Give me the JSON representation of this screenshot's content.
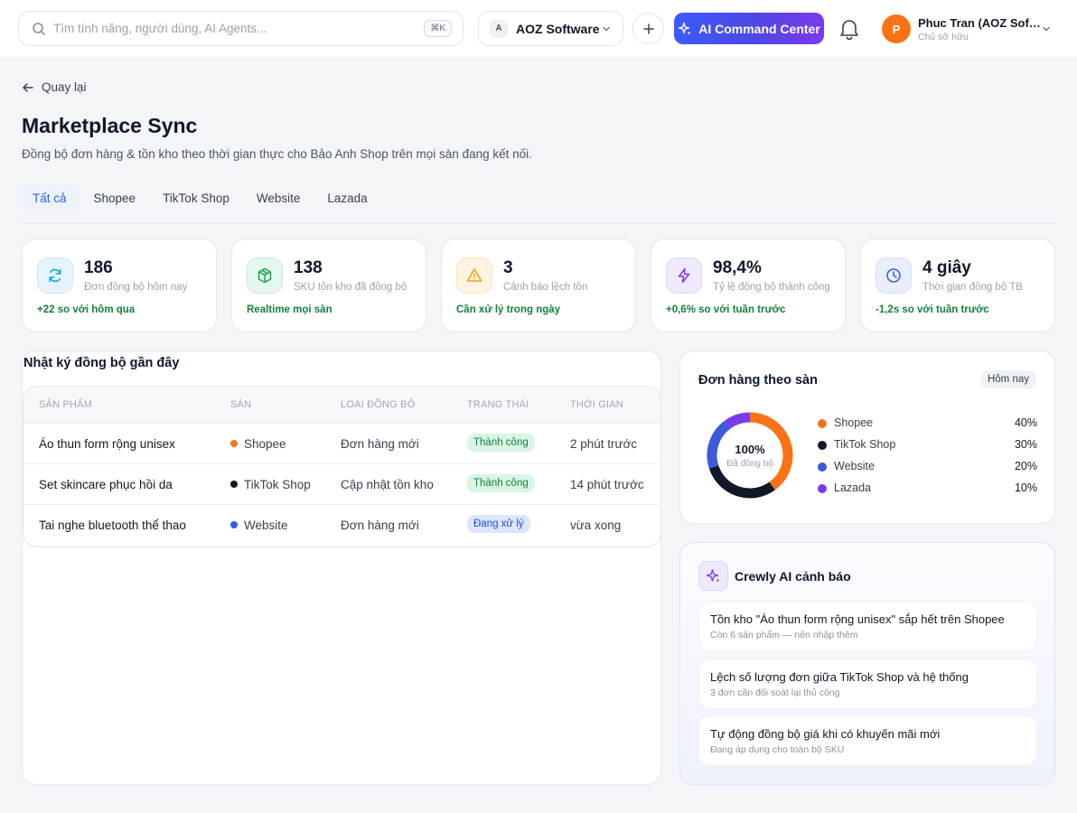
{
  "topbar": {
    "search_placeholder": "Tìm tính năng, người dùng, AI Agents...",
    "search_shortcut": "⌘K",
    "workspace_badge": "A",
    "workspace_name": "AOZ Software",
    "ai_button": "AI Command Center",
    "user": {
      "initial": "P",
      "name": "Phuc Tran (AOZ Software)",
      "role": "Chủ sở hữu"
    }
  },
  "header": {
    "back_label": "Quay lại",
    "title": "Marketplace Sync",
    "subtitle": "Đồng bộ đơn hàng & tồn kho theo thời gian thực cho Bảo Anh Shop trên mọi sàn đang kết nối."
  },
  "tabs": [
    "Tất cả",
    "Shopee",
    "TikTok Shop",
    "Website",
    "Lazada"
  ],
  "stats": [
    {
      "value": "186",
      "label": "Đơn đồng bộ hôm nay",
      "delta": "+22 so với hôm qua",
      "icon": "refresh-icon"
    },
    {
      "value": "138",
      "label": "SKU tồn kho đã đồng bộ",
      "delta": "Realtime mọi sàn",
      "icon": "package-icon"
    },
    {
      "value": "3",
      "label": "Cảnh báo lệch tồn",
      "delta": "Cần xử lý trong ngày",
      "icon": "warning-icon"
    },
    {
      "value": "98,4%",
      "label": "Tỷ lệ đồng bộ thành công",
      "delta": "+0,6% so với tuần trước",
      "icon": "lightning-icon"
    },
    {
      "value": "4 giây",
      "label": "Thời gian đồng bộ TB",
      "delta": "-1,2s so với tuần trước",
      "icon": "clock-icon"
    }
  ],
  "log": {
    "title": "Nhật ký đồng bộ gần đây",
    "columns": [
      "SẢN PHẨM",
      "SÀN",
      "LOẠI ĐỒNG BỘ",
      "TRẠNG THÁI",
      "THỜI GIAN"
    ],
    "rows": [
      {
        "product": "Áo thun form rộng unisex",
        "channel": "Shopee",
        "type": "Đơn hàng mới",
        "status": "Thành công",
        "time": "2 phút trước"
      },
      {
        "product": "Set skincare phục hồi da",
        "channel": "TikTok Shop",
        "type": "Cập nhật tồn kho",
        "status": "Thành công",
        "time": "14 phút trước"
      },
      {
        "product": "Tai nghe bluetooth thể thao",
        "channel": "Website",
        "type": "Đơn hàng mới",
        "status": "Đang xử lý",
        "time": "vừa xong"
      }
    ]
  },
  "orders": {
    "title": "Đơn hàng theo sàn",
    "chip": "Hôm nay",
    "center_value": "100%",
    "center_label": "Đã đồng bộ"
  },
  "chart_data": {
    "type": "pie",
    "categories": [
      "Shopee",
      "TikTok Shop",
      "Website",
      "Lazada"
    ],
    "values": [
      40,
      30,
      20,
      10
    ],
    "value_labels": [
      "40%",
      "30%",
      "20%",
      "10%"
    ],
    "colors": [
      "#f97316",
      "#111827",
      "#3b5bdb",
      "#7c3aed"
    ]
  },
  "channel_colors": {
    "Shopee": "#f97316",
    "TikTok Shop": "#111827",
    "Website": "#3b5bdb",
    "Lazada": "#7c3aed"
  },
  "ai": {
    "title": "Crewly AI cảnh báo",
    "alerts": [
      {
        "title": "Tồn kho \"Áo thun form rộng unisex\" sắp hết trên Shopee",
        "sub": "Còn 6 sản phẩm — nên nhập thêm"
      },
      {
        "title": "Lệch số lượng đơn giữa TikTok Shop và hệ thống",
        "sub": "3 đơn cần đối soát lại thủ công"
      },
      {
        "title": "Tự động đồng bộ giá khi có khuyến mãi mới",
        "sub": "Đang áp dụng cho toàn bộ SKU"
      }
    ]
  }
}
